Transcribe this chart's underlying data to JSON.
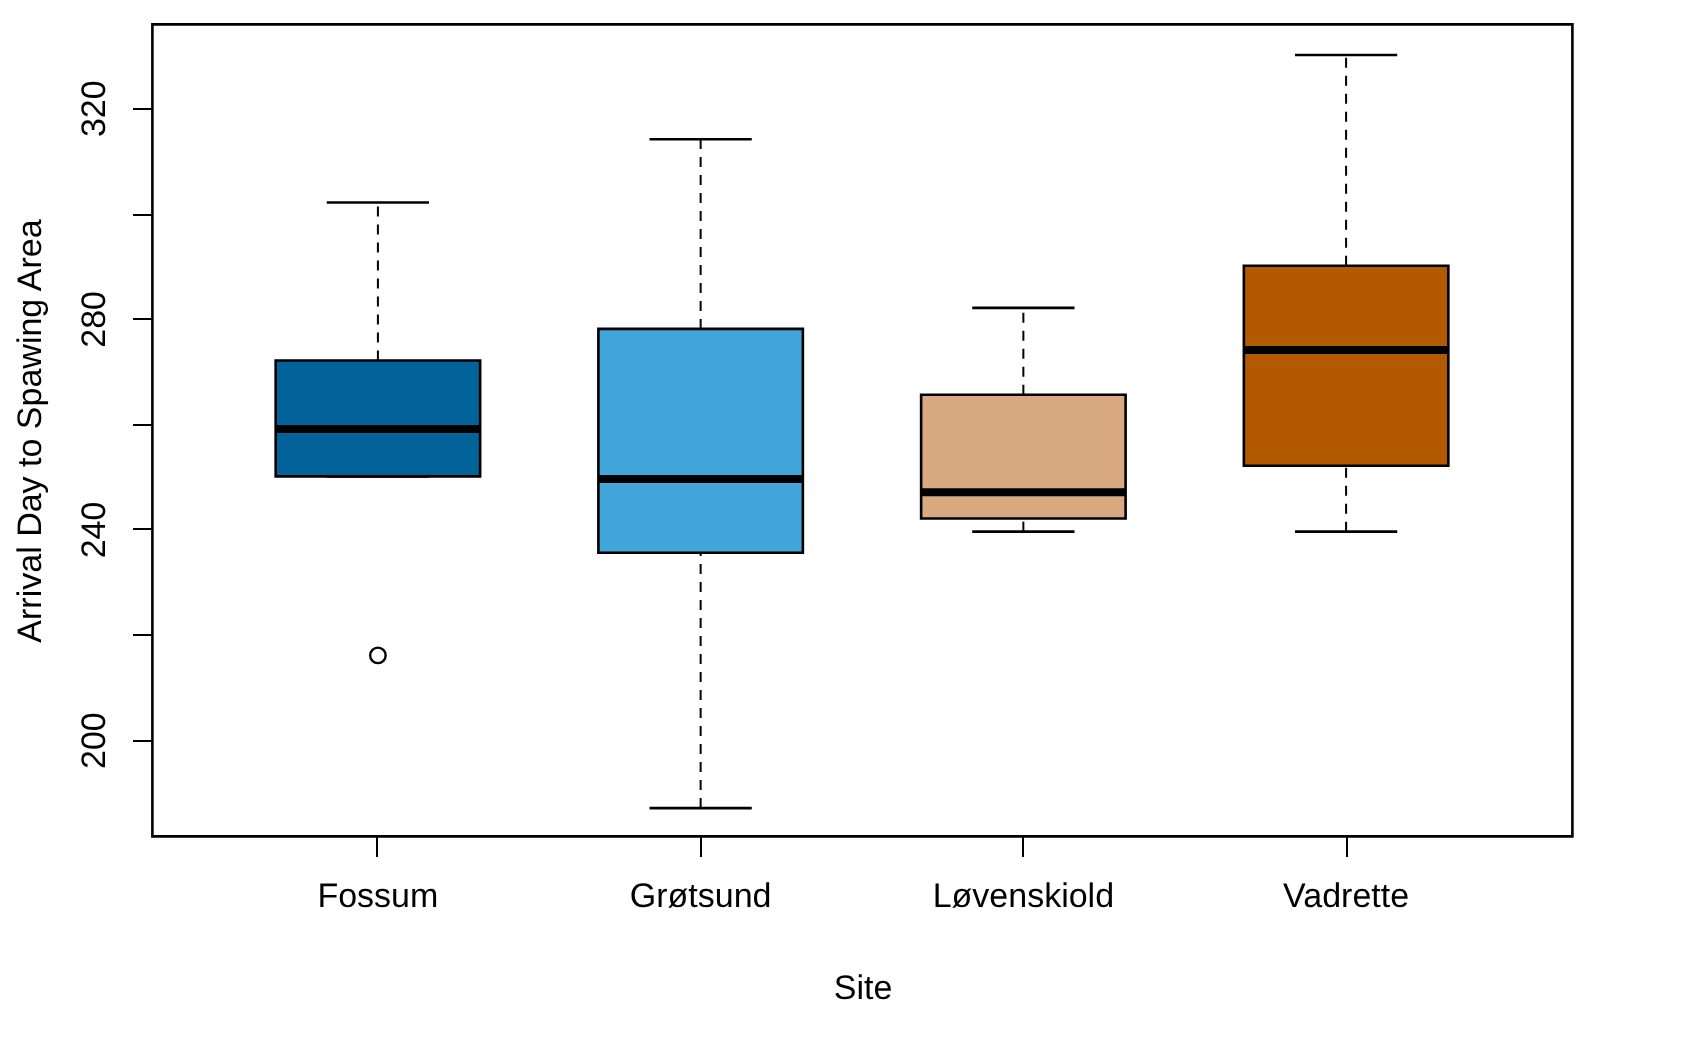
{
  "chart_data": {
    "type": "box",
    "xlabel": "Site",
    "ylabel": "Arrival Day to Spawing Area",
    "categories": [
      "Fossum",
      "Grøtsund",
      "Løvenskiold",
      "Vadrette"
    ],
    "colors": [
      "#02639b",
      "#41a5d9",
      "#d9aa82",
      "#b35900"
    ],
    "boxes": [
      {
        "low": 250,
        "q1": 250,
        "median": 259,
        "q3": 272,
        "high": 302,
        "outliers": [
          216
        ]
      },
      {
        "low": 187,
        "q1": 235.5,
        "median": 249.5,
        "q3": 278,
        "high": 314
      },
      {
        "low": 239.5,
        "q1": 242,
        "median": 247,
        "q3": 265.5,
        "high": 282
      },
      {
        "low": 239.5,
        "q1": 252,
        "median": 274,
        "q3": 290,
        "high": 330
      }
    ],
    "ylim": [
      181.7,
      335.9
    ],
    "yticks": [
      200,
      {
        "value": 220,
        "label": null
      },
      240,
      {
        "value": 260,
        "label": null
      },
      280,
      {
        "value": 300,
        "label": null
      },
      320
    ],
    "grid": false
  }
}
